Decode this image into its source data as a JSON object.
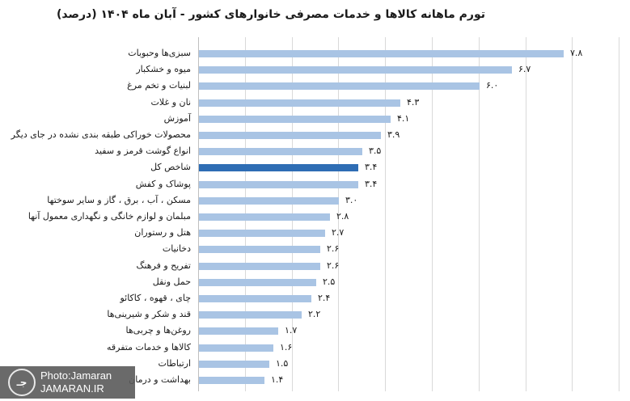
{
  "title": "تورم ماهانه کالاها و خدمات مصرفی خانوارهای کشور - آبان ماه ۱۴۰۴ (درصد)",
  "colors": {
    "bar": "#a9c4e4",
    "highlight": "#2e6db4",
    "grid": "#d9d9d9"
  },
  "watermark": {
    "line1": "Photo:Jamaran",
    "line2": "JAMARAN.IR",
    "logo_icon": "jamaran-logo-icon"
  },
  "rows": [
    {
      "label": "سبزی‌ها وحبوبات",
      "value_label": "۷.۸"
    },
    {
      "label": "میوه و خشکبار",
      "value_label": "۶.۷"
    },
    {
      "label": "لبنیات و تخم مرغ",
      "value_label": "۶.۰"
    },
    {
      "label": "نان و غلات",
      "value_label": "۴.۳"
    },
    {
      "label": "آموزش",
      "value_label": "۴.۱"
    },
    {
      "label": "محصولات خوراکی طبقه بندی نشده در جای دیگر",
      "value_label": "۳.۹"
    },
    {
      "label": "انواع گوشت قرمز و سفید",
      "value_label": "۳.۵"
    },
    {
      "label": "شاخص کل",
      "value_label": "۳.۴"
    },
    {
      "label": "پوشاک و کفش",
      "value_label": "۳.۴"
    },
    {
      "label": "مسکن ، آب ، برق ، گاز و سایر سوختها",
      "value_label": "۳.۰"
    },
    {
      "label": "مبلمان و لوازم خانگی و نگهداری معمول آنها",
      "value_label": "۲.۸"
    },
    {
      "label": "هتل و رستوران",
      "value_label": "۲.۷"
    },
    {
      "label": "دخانیات",
      "value_label": "۲.۶"
    },
    {
      "label": "تفریح و فرهنگ",
      "value_label": "۲.۶"
    },
    {
      "label": "حمل ونقل",
      "value_label": "۲.۵"
    },
    {
      "label": "چای ، قهوه ، کاکائو",
      "value_label": "۲.۴"
    },
    {
      "label": "قند و شکر و شیرینی‌ها",
      "value_label": "۲.۲"
    },
    {
      "label": "روغن‌ها و چربی‌ها",
      "value_label": "۱.۷"
    },
    {
      "label": "کالاها و خدمات متفرقه",
      "value_label": "۱.۶"
    },
    {
      "label": "ارتباطات",
      "value_label": "۱.۵"
    },
    {
      "label": "بهداشت و درمان",
      "value_label": "۱.۴"
    }
  ],
  "chart_data": {
    "type": "bar",
    "orientation": "horizontal",
    "title": "تورم ماهانه کالاها و خدمات مصرفی خانوارهای کشور - آبان ماه ۱۴۰۴ (درصد)",
    "xlabel": "",
    "ylabel": "",
    "xlim": [
      0,
      9
    ],
    "grid": true,
    "legend": null,
    "categories": [
      "سبزی‌ها وحبوبات",
      "میوه و خشکبار",
      "لبنیات و تخم مرغ",
      "نان و غلات",
      "آموزش",
      "محصولات خوراکی طبقه بندی نشده در جای دیگر",
      "انواع گوشت قرمز و سفید",
      "شاخص کل",
      "پوشاک و کفش",
      "مسکن ، آب ، برق ، گاز و سایر سوختها",
      "مبلمان و لوازم خانگی و نگهداری معمول آنها",
      "هتل و رستوران",
      "دخانیات",
      "تفریح و فرهنگ",
      "حمل ونقل",
      "چای ، قهوه ، کاکائو",
      "قند و شکر و شیرینی‌ها",
      "روغن‌ها و چربی‌ها",
      "کالاها و خدمات متفرقه",
      "ارتباطات",
      "بهداشت و درمان"
    ],
    "values": [
      7.8,
      6.7,
      6.0,
      4.3,
      4.1,
      3.9,
      3.5,
      3.4,
      3.4,
      3.0,
      2.8,
      2.7,
      2.6,
      2.6,
      2.5,
      2.4,
      2.2,
      1.7,
      1.6,
      1.5,
      1.4
    ],
    "highlighted_category": "شاخص کل",
    "annotations": "data labels shown at end of each bar in Persian numerals"
  }
}
